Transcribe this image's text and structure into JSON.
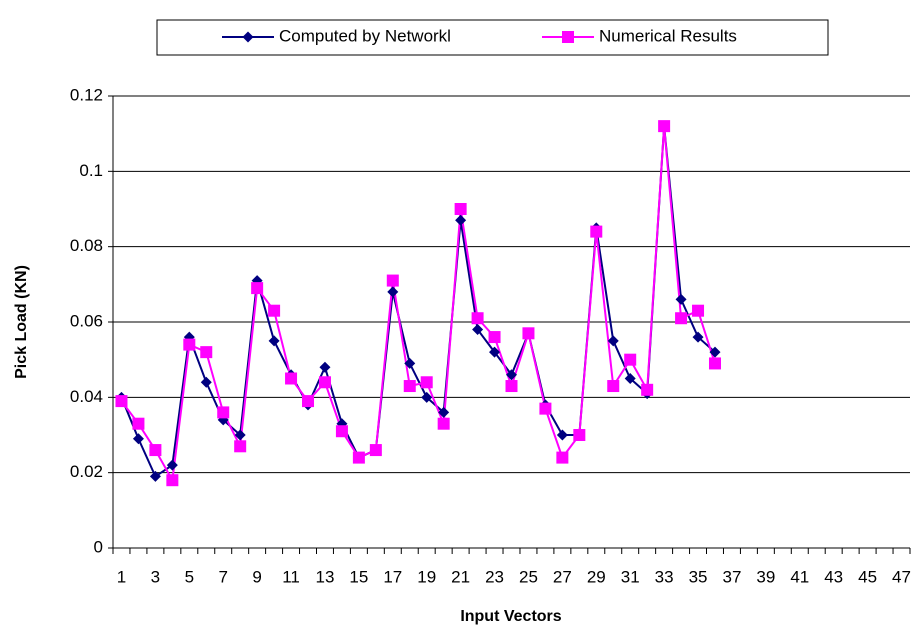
{
  "chart_data": {
    "type": "line",
    "y_label": "Pick Load (KN)",
    "x_label": "Input Vectors",
    "categories": [
      1,
      null,
      3,
      null,
      5,
      null,
      7,
      null,
      9,
      null,
      11,
      null,
      13,
      null,
      15,
      null,
      17,
      null,
      19,
      null,
      21,
      null,
      23,
      null,
      25,
      null,
      27,
      null,
      29,
      null,
      31,
      null,
      33,
      null,
      35,
      null,
      37,
      null,
      39,
      null,
      41,
      null,
      43,
      null,
      45,
      null,
      47
    ],
    "series": [
      {
        "name": "Computed by Networkl",
        "color": "#000080",
        "marker": "diamond",
        "values": [
          0.04,
          0.029,
          0.019,
          0.022,
          0.056,
          0.044,
          0.034,
          0.03,
          0.071,
          0.055,
          0.046,
          0.038,
          0.048,
          0.033,
          0.024,
          0.026,
          0.068,
          0.049,
          0.04,
          0.036,
          0.087,
          0.058,
          0.052,
          0.046,
          0.057,
          0.038,
          0.03,
          0.03,
          0.085,
          0.055,
          0.045,
          0.041,
          0.112,
          0.066,
          0.056,
          0.052,
          null,
          null,
          null,
          null,
          null,
          null,
          null,
          null,
          null,
          null,
          null
        ]
      },
      {
        "name": "Numerical Results",
        "color": "#ff00ff",
        "marker": "square",
        "values": [
          0.039,
          0.033,
          0.026,
          0.018,
          0.054,
          0.052,
          0.036,
          0.027,
          0.069,
          0.063,
          0.045,
          0.039,
          0.044,
          0.031,
          0.024,
          0.026,
          0.071,
          0.043,
          0.044,
          0.033,
          0.09,
          0.061,
          0.056,
          0.043,
          0.057,
          0.037,
          0.024,
          0.03,
          0.084,
          0.043,
          0.05,
          0.042,
          0.112,
          0.061,
          0.063,
          0.049,
          null,
          null,
          null,
          null,
          null,
          null,
          null,
          null,
          null,
          null,
          null
        ]
      }
    ],
    "ylim": [
      0,
      0.12
    ],
    "yticks": [
      0,
      0.02,
      0.04,
      0.06,
      0.08,
      0.1,
      0.12
    ],
    "grid": true,
    "legend": "top"
  }
}
